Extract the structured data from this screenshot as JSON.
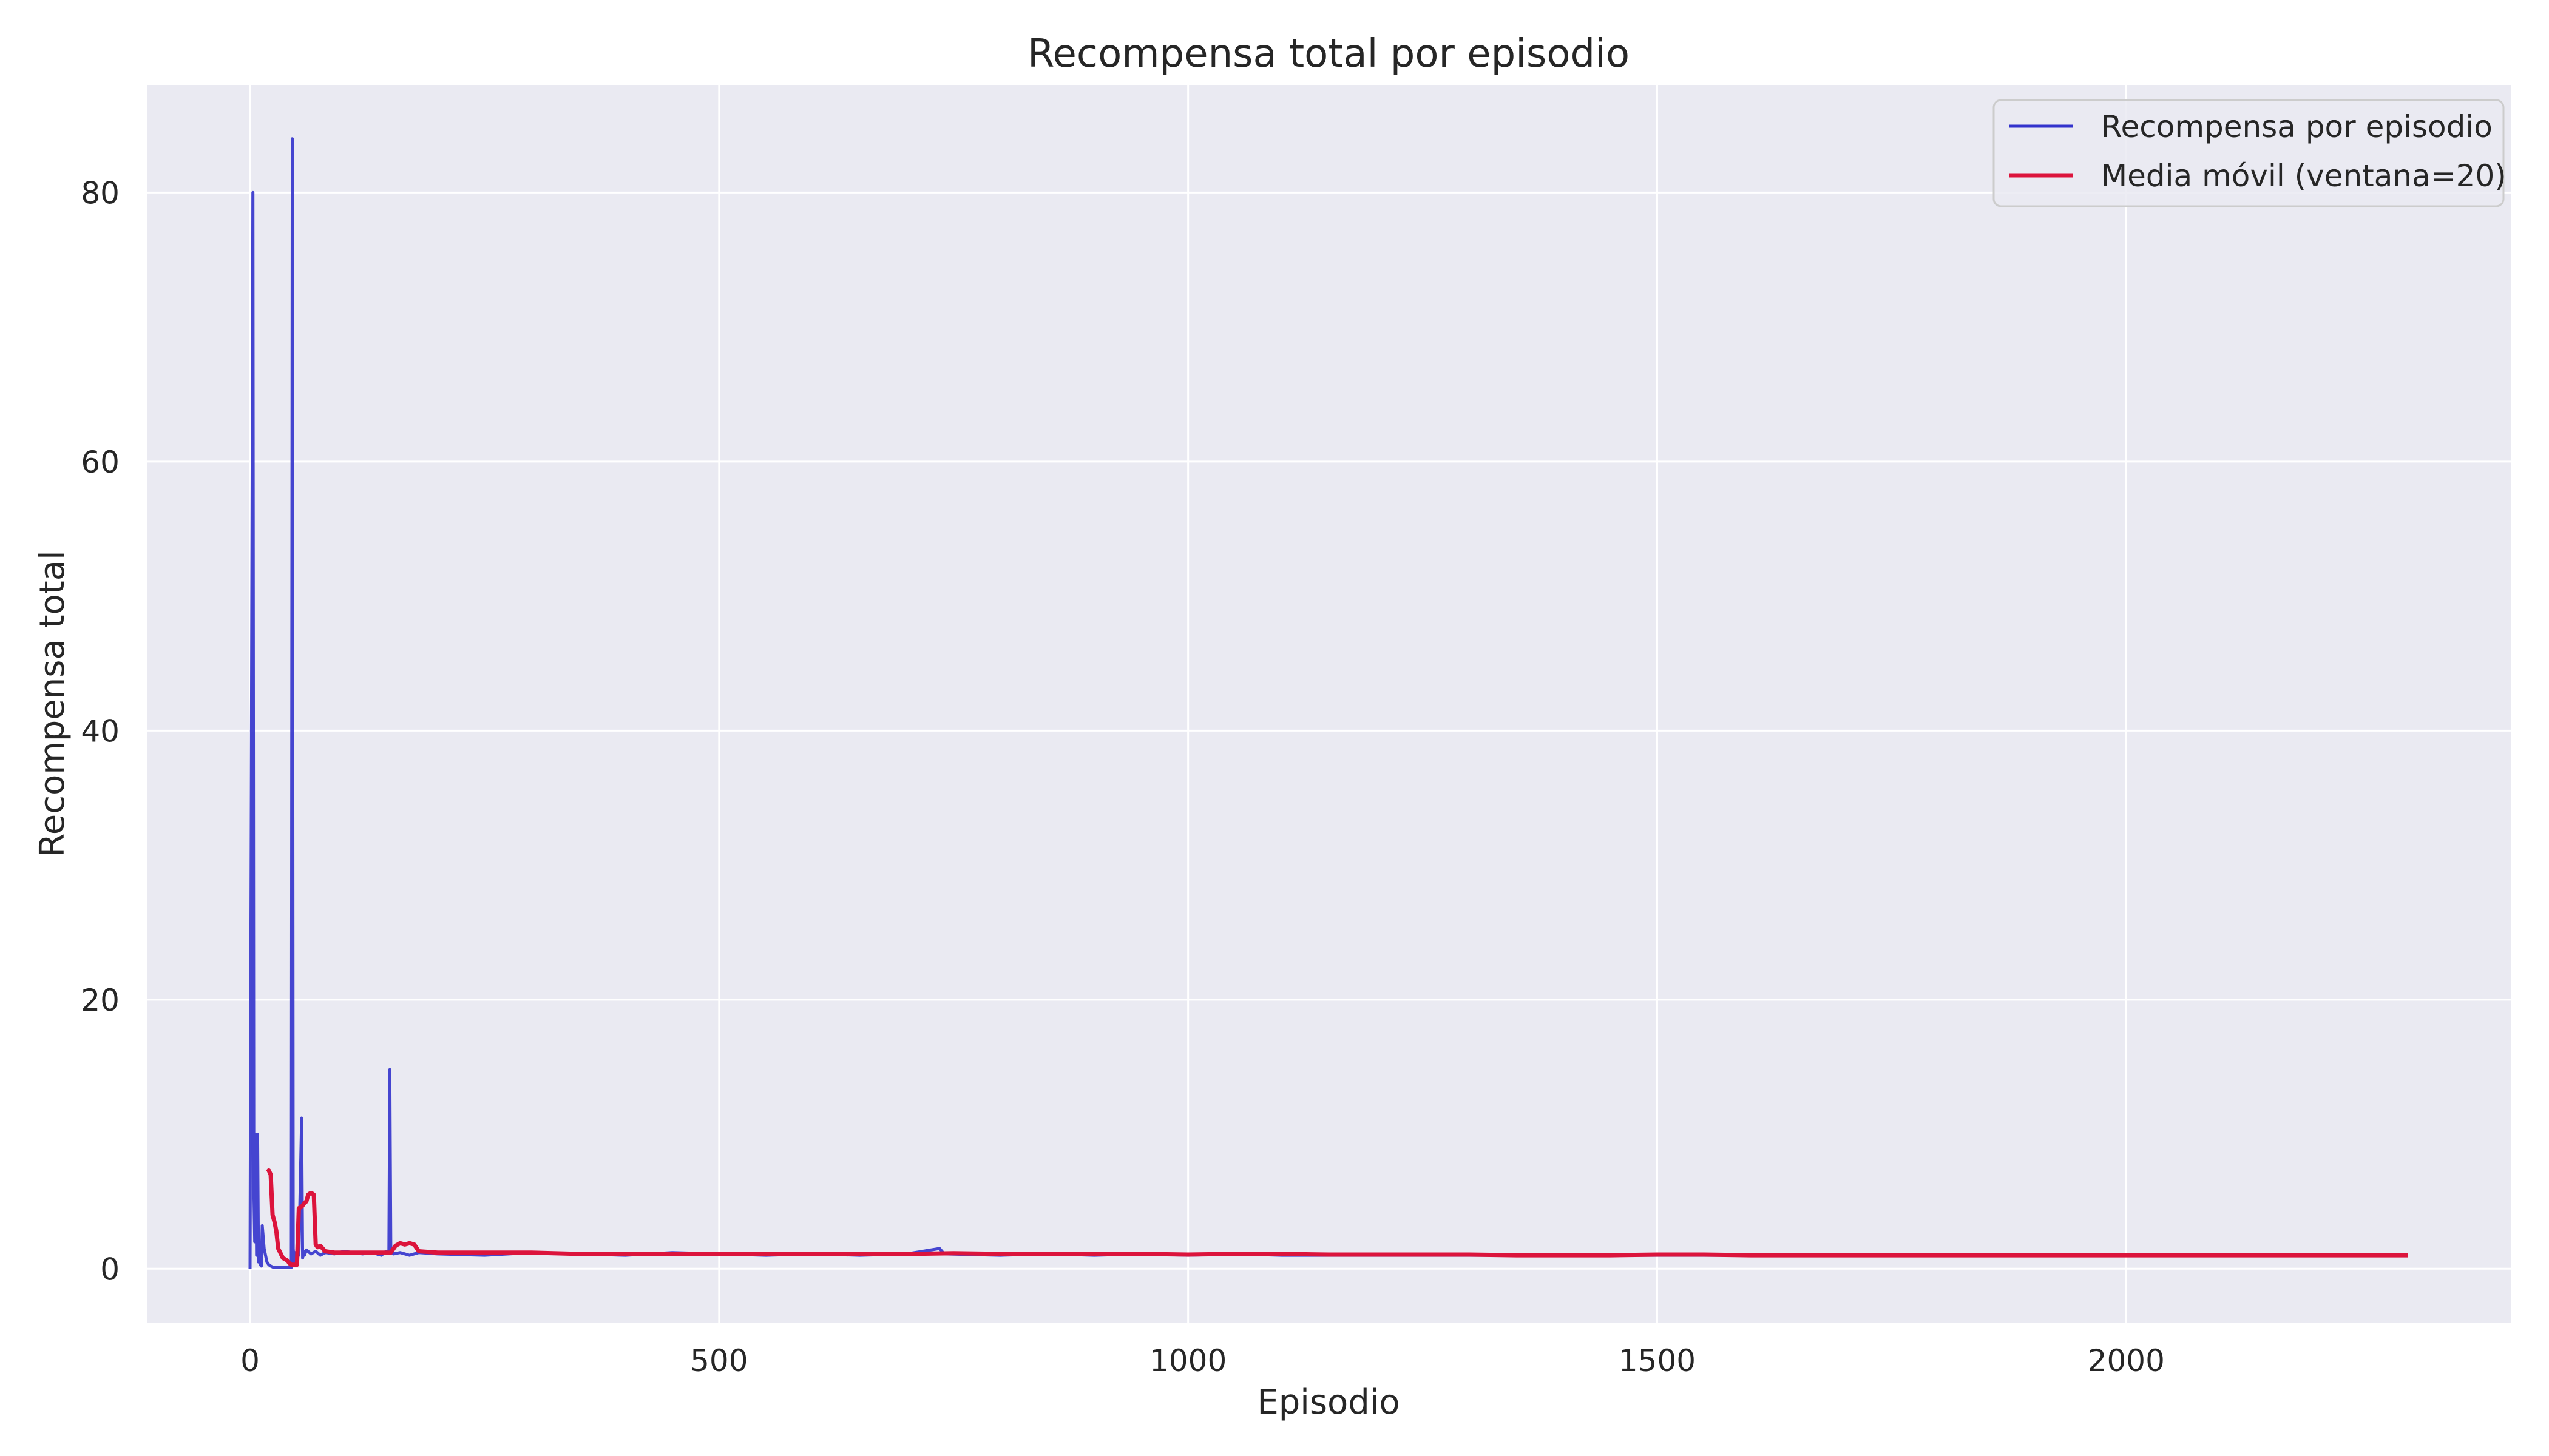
{
  "chart_data": {
    "type": "line",
    "title": "Recompensa total por episodio",
    "xlabel": "Episodio",
    "ylabel": "Recompensa total",
    "xlim": [
      -110,
      2410
    ],
    "ylim": [
      -4,
      88
    ],
    "xticks": [
      0,
      500,
      1000,
      1500,
      2000
    ],
    "xtick_labels": [
      "0",
      "500",
      "1000",
      "1500",
      "2000"
    ],
    "yticks": [
      0,
      20,
      40,
      60,
      80
    ],
    "ytick_labels": [
      "0",
      "20",
      "40",
      "60",
      "80"
    ],
    "grid": true,
    "legend_position": "top-right",
    "colors": {
      "background": "#eaeaf2",
      "grid": "#ffffff",
      "reward": "#3333cc",
      "moving_avg": "#dc143c"
    },
    "series": [
      {
        "name": "Recompensa por episodio",
        "color": "#3333cc",
        "x": [
          0,
          3,
          4,
          5,
          6,
          7,
          8,
          9,
          10,
          11,
          12,
          13,
          15,
          18,
          20,
          22,
          25,
          30,
          35,
          40,
          44,
          45,
          46,
          47,
          48,
          50,
          52,
          55,
          56,
          57,
          58,
          60,
          65,
          70,
          75,
          80,
          90,
          100,
          110,
          120,
          130,
          140,
          145,
          148,
          149,
          150,
          151,
          153,
          160,
          170,
          180,
          200,
          250,
          300,
          350,
          400,
          450,
          500,
          550,
          600,
          650,
          700,
          735,
          740,
          800,
          850,
          900,
          950,
          1000,
          1050,
          1100,
          1150,
          1200,
          1250,
          1300,
          1350,
          1400,
          1450,
          1500,
          1550,
          1600,
          1650,
          1700,
          1750,
          1800,
          1850,
          1900,
          1950,
          2000,
          2050,
          2100,
          2150,
          2200,
          2250,
          2300
        ],
        "y": [
          0,
          80,
          6,
          2,
          10,
          1,
          10,
          0.5,
          2,
          0.3,
          0.2,
          3.2,
          1.5,
          0.5,
          0.3,
          0.2,
          0.1,
          0.1,
          0.1,
          0.1,
          0.1,
          84,
          1.5,
          0.5,
          1.2,
          1.2,
          1.0,
          11.2,
          0.8,
          1.3,
          1.0,
          1.4,
          1.1,
          1.3,
          1.0,
          1.2,
          1.1,
          1.3,
          1.2,
          1.1,
          1.2,
          1.0,
          1.3,
          1.2,
          14.8,
          1.5,
          1.2,
          1.1,
          1.2,
          1.0,
          1.2,
          1.1,
          1.0,
          1.2,
          1.1,
          1.0,
          1.2,
          1.1,
          1.0,
          1.1,
          1.0,
          1.1,
          1.5,
          1.1,
          1.0,
          1.1,
          1.0,
          1.1,
          1.0,
          1.1,
          1.0,
          1.0,
          1.0,
          1.0,
          1.0,
          1.0,
          1.0,
          1.0,
          1.0,
          1.0,
          1.0,
          1.0,
          1.0,
          1.0,
          1.0,
          1.0,
          1.0,
          1.0,
          1.0,
          1.0,
          1.0,
          1.0,
          1.0,
          1.0,
          1.0
        ]
      },
      {
        "name": "Media móvil (ventana=20)",
        "color": "#dc143c",
        "x": [
          19,
          20,
          22,
          24,
          26,
          28,
          30,
          35,
          40,
          42,
          44,
          46,
          48,
          50,
          52,
          55,
          58,
          60,
          62,
          64,
          66,
          68,
          70,
          72,
          75,
          80,
          90,
          100,
          120,
          140,
          150,
          155,
          160,
          165,
          170,
          175,
          180,
          200,
          250,
          300,
          350,
          400,
          450,
          500,
          550,
          600,
          650,
          700,
          750,
          800,
          850,
          900,
          950,
          1000,
          1050,
          1100,
          1150,
          1200,
          1250,
          1300,
          1350,
          1400,
          1450,
          1500,
          1550,
          1600,
          1650,
          1700,
          1750,
          1800,
          1850,
          1900,
          1950,
          2000,
          2050,
          2100,
          2150,
          2200,
          2250,
          2300
        ],
        "y": [
          7.2,
          7.3,
          7.0,
          4.0,
          3.5,
          2.8,
          1.5,
          0.8,
          0.6,
          0.4,
          0.3,
          0.3,
          0.3,
          0.3,
          4.5,
          4.6,
          4.9,
          5.0,
          5.5,
          5.6,
          5.6,
          5.5,
          1.8,
          1.6,
          1.7,
          1.3,
          1.2,
          1.2,
          1.2,
          1.2,
          1.2,
          1.7,
          1.9,
          1.8,
          1.9,
          1.8,
          1.3,
          1.2,
          1.2,
          1.2,
          1.1,
          1.1,
          1.1,
          1.1,
          1.1,
          1.1,
          1.1,
          1.1,
          1.15,
          1.1,
          1.1,
          1.1,
          1.1,
          1.05,
          1.1,
          1.1,
          1.05,
          1.05,
          1.05,
          1.05,
          1.0,
          1.0,
          1.0,
          1.05,
          1.05,
          1.0,
          1.0,
          1.0,
          1.0,
          1.0,
          1.0,
          1.0,
          1.0,
          1.0,
          1.0,
          1.0,
          1.0,
          1.0,
          1.0,
          1.0
        ]
      }
    ]
  }
}
